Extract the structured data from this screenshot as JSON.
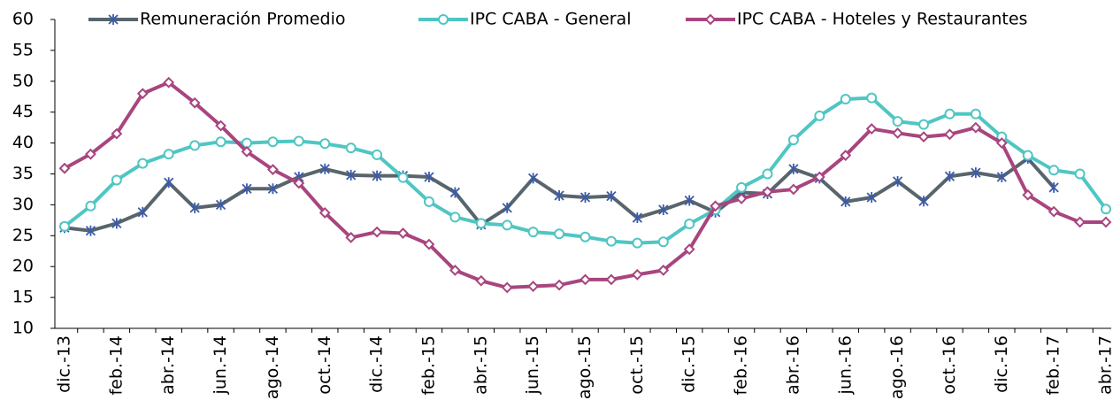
{
  "chart_data": {
    "type": "line",
    "categories": [
      "dic.-13",
      null,
      "feb.-14",
      null,
      "abr.-14",
      null,
      "jun.-14",
      null,
      "ago.-14",
      null,
      "oct.-14",
      null,
      "dic.-14",
      null,
      "feb.-15",
      null,
      "abr.-15",
      null,
      "jun.-15",
      null,
      "ago.-15",
      null,
      "oct.-15",
      null,
      "dic.-15",
      null,
      "feb.-16",
      null,
      "abr.-16",
      null,
      "jun.-16",
      null,
      "ago.-16",
      null,
      "oct.-16",
      null,
      "dic.-16",
      null,
      "feb.-17",
      null,
      "abr.-17"
    ],
    "series": [
      {
        "name": "Remuneración Promedio",
        "color": "#58656c",
        "marker": "star",
        "values": [
          26.3,
          25.8,
          27,
          28.8,
          33.6,
          29.5,
          30,
          32.6,
          32.6,
          34.5,
          35.8,
          34.8,
          34.7,
          34.7,
          34.5,
          32,
          26.8,
          29.5,
          34.3,
          31.5,
          31.2,
          31.4,
          27.9,
          29.2,
          30.7,
          28.8,
          32,
          31.8,
          35.8,
          34.3,
          30.5,
          31.2,
          33.8,
          30.6,
          34.6,
          35.2,
          34.5,
          37.5,
          32.8,
          null,
          null
        ]
      },
      {
        "name": "IPC CABA - General",
        "color": "#4fc6c3",
        "marker": "circle",
        "values": [
          26.5,
          29.8,
          34,
          36.7,
          38.2,
          39.6,
          40.2,
          40,
          40.2,
          40.3,
          39.9,
          39.2,
          38.1,
          34.4,
          30.5,
          28,
          27,
          26.7,
          25.6,
          25.3,
          24.8,
          24.1,
          23.8,
          24,
          26.9,
          29.2,
          32.8,
          35,
          40.5,
          44.4,
          47.1,
          47.3,
          43.5,
          43,
          44.7,
          44.7,
          41,
          38,
          35.6,
          35,
          29.3
        ]
      },
      {
        "name": "IPC CABA -  Hoteles y Restaurantes",
        "color": "#a8457f",
        "marker": "diamond",
        "values": [
          35.9,
          38.2,
          41.5,
          48,
          49.8,
          46.5,
          42.8,
          38.6,
          35.7,
          33.5,
          28.7,
          24.7,
          25.6,
          25.4,
          23.6,
          19.4,
          17.7,
          16.6,
          16.8,
          17,
          17.9,
          17.9,
          18.7,
          19.4,
          22.8,
          29.8,
          31,
          32.1,
          32.5,
          34.5,
          38,
          42.3,
          41.6,
          41,
          41.4,
          42.5,
          40,
          31.6,
          28.9,
          27.2,
          27.2
        ]
      }
    ],
    "ylim": [
      10,
      60
    ],
    "yticks": [
      10,
      15,
      20,
      25,
      30,
      35,
      40,
      45,
      50,
      55,
      60
    ],
    "grid": false
  }
}
